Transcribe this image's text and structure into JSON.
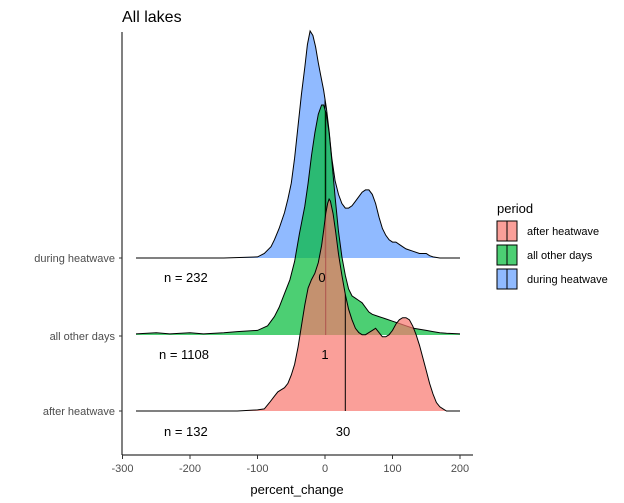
{
  "chart_data": {
    "type": "ridgeline",
    "title": "All lakes",
    "xlabel": "percent_change",
    "ylabel": "",
    "xlim": [
      -300,
      220
    ],
    "xticks": [
      -300,
      -200,
      -100,
      0,
      100,
      200
    ],
    "grid": false,
    "legend": {
      "title": "period",
      "placement": "right",
      "entries": [
        "after heatwave",
        "all other days",
        "during heatwave"
      ]
    },
    "colors": {
      "after heatwave": "#F8766D",
      "all other days": "#00BA38",
      "during heatwave": "#619CFF"
    },
    "series": [
      {
        "name": "during heatwave",
        "n_label": "n = 232",
        "median_label": "0",
        "median": 0,
        "density": [
          [
            -280,
            0
          ],
          [
            -150,
            0
          ],
          [
            -100,
            0.005
          ],
          [
            -90,
            0.02
          ],
          [
            -80,
            0.05
          ],
          [
            -75,
            0.08
          ],
          [
            -68,
            0.13
          ],
          [
            -60,
            0.2
          ],
          [
            -55,
            0.26
          ],
          [
            -50,
            0.33
          ],
          [
            -45,
            0.44
          ],
          [
            -40,
            0.58
          ],
          [
            -35,
            0.72
          ],
          [
            -30,
            0.84
          ],
          [
            -26,
            0.94
          ],
          [
            -22,
            1.0
          ],
          [
            -18,
            0.98
          ],
          [
            -14,
            0.93
          ],
          [
            -10,
            0.86
          ],
          [
            -6,
            0.8
          ],
          [
            -2,
            0.74
          ],
          [
            2,
            0.66
          ],
          [
            6,
            0.56
          ],
          [
            10,
            0.44
          ],
          [
            15,
            0.34
          ],
          [
            20,
            0.28
          ],
          [
            25,
            0.24
          ],
          [
            30,
            0.22
          ],
          [
            35,
            0.22
          ],
          [
            40,
            0.23
          ],
          [
            45,
            0.25
          ],
          [
            50,
            0.27
          ],
          [
            55,
            0.29
          ],
          [
            60,
            0.3
          ],
          [
            65,
            0.3
          ],
          [
            70,
            0.28
          ],
          [
            75,
            0.24
          ],
          [
            80,
            0.18
          ],
          [
            85,
            0.13
          ],
          [
            90,
            0.1
          ],
          [
            95,
            0.08
          ],
          [
            100,
            0.07
          ],
          [
            105,
            0.07
          ],
          [
            110,
            0.06
          ],
          [
            115,
            0.05
          ],
          [
            120,
            0.04
          ],
          [
            130,
            0.03
          ],
          [
            140,
            0.02
          ],
          [
            150,
            0.02
          ],
          [
            155,
            0.01
          ],
          [
            160,
            0.005
          ],
          [
            170,
            0
          ],
          [
            200,
            0
          ]
        ]
      },
      {
        "name": "all other days",
        "n_label": "n = 1108",
        "median_label": "1",
        "median": 1,
        "density": [
          [
            -280,
            0.005
          ],
          [
            -250,
            0.01
          ],
          [
            -230,
            0.005
          ],
          [
            -200,
            0.01
          ],
          [
            -180,
            0.005
          ],
          [
            -150,
            0.01
          ],
          [
            -130,
            0.015
          ],
          [
            -100,
            0.02
          ],
          [
            -85,
            0.04
          ],
          [
            -75,
            0.08
          ],
          [
            -68,
            0.12
          ],
          [
            -60,
            0.18
          ],
          [
            -52,
            0.24
          ],
          [
            -45,
            0.32
          ],
          [
            -38,
            0.44
          ],
          [
            -30,
            0.56
          ],
          [
            -25,
            0.66
          ],
          [
            -20,
            0.78
          ],
          [
            -15,
            0.88
          ],
          [
            -10,
            0.96
          ],
          [
            -5,
            1.0
          ],
          [
            -2,
            1.0
          ],
          [
            2,
            0.96
          ],
          [
            6,
            0.88
          ],
          [
            10,
            0.76
          ],
          [
            15,
            0.6
          ],
          [
            20,
            0.45
          ],
          [
            25,
            0.34
          ],
          [
            30,
            0.26
          ],
          [
            35,
            0.2
          ],
          [
            40,
            0.17
          ],
          [
            45,
            0.16
          ],
          [
            50,
            0.15
          ],
          [
            55,
            0.14
          ],
          [
            60,
            0.12
          ],
          [
            65,
            0.1
          ],
          [
            70,
            0.09
          ],
          [
            80,
            0.08
          ],
          [
            90,
            0.07
          ],
          [
            100,
            0.06
          ],
          [
            110,
            0.05
          ],
          [
            120,
            0.04
          ],
          [
            130,
            0.03
          ],
          [
            140,
            0.025
          ],
          [
            150,
            0.02
          ],
          [
            160,
            0.015
          ],
          [
            170,
            0.01
          ],
          [
            180,
            0.008
          ],
          [
            200,
            0.005
          ]
        ]
      },
      {
        "name": "after heatwave",
        "n_label": "n = 132",
        "median_label": "30",
        "median": 30,
        "density": [
          [
            -280,
            0
          ],
          [
            -130,
            0
          ],
          [
            -100,
            0.005
          ],
          [
            -90,
            0.01
          ],
          [
            -82,
            0.04
          ],
          [
            -75,
            0.07
          ],
          [
            -70,
            0.09
          ],
          [
            -65,
            0.1
          ],
          [
            -60,
            0.11
          ],
          [
            -55,
            0.13
          ],
          [
            -50,
            0.17
          ],
          [
            -45,
            0.22
          ],
          [
            -40,
            0.3
          ],
          [
            -35,
            0.4
          ],
          [
            -30,
            0.5
          ],
          [
            -25,
            0.58
          ],
          [
            -20,
            0.62
          ],
          [
            -15,
            0.65
          ],
          [
            -10,
            0.7
          ],
          [
            -5,
            0.78
          ],
          [
            -2,
            0.85
          ],
          [
            1,
            0.93
          ],
          [
            4,
            0.98
          ],
          [
            6,
            1.0
          ],
          [
            8,
            0.99
          ],
          [
            12,
            0.93
          ],
          [
            16,
            0.84
          ],
          [
            20,
            0.74
          ],
          [
            25,
            0.64
          ],
          [
            30,
            0.55
          ],
          [
            35,
            0.48
          ],
          [
            40,
            0.43
          ],
          [
            45,
            0.39
          ],
          [
            50,
            0.37
          ],
          [
            55,
            0.36
          ],
          [
            60,
            0.36
          ],
          [
            65,
            0.37
          ],
          [
            70,
            0.38
          ],
          [
            75,
            0.39
          ],
          [
            80,
            0.37
          ],
          [
            85,
            0.35
          ],
          [
            90,
            0.35
          ],
          [
            95,
            0.36
          ],
          [
            100,
            0.38
          ],
          [
            105,
            0.41
          ],
          [
            110,
            0.43
          ],
          [
            115,
            0.44
          ],
          [
            120,
            0.44
          ],
          [
            125,
            0.43
          ],
          [
            130,
            0.4
          ],
          [
            135,
            0.36
          ],
          [
            140,
            0.31
          ],
          [
            145,
            0.25
          ],
          [
            150,
            0.19
          ],
          [
            155,
            0.13
          ],
          [
            160,
            0.08
          ],
          [
            165,
            0.04
          ],
          [
            170,
            0.02
          ],
          [
            175,
            0.01
          ],
          [
            180,
            0
          ],
          [
            200,
            0
          ]
        ]
      }
    ]
  }
}
